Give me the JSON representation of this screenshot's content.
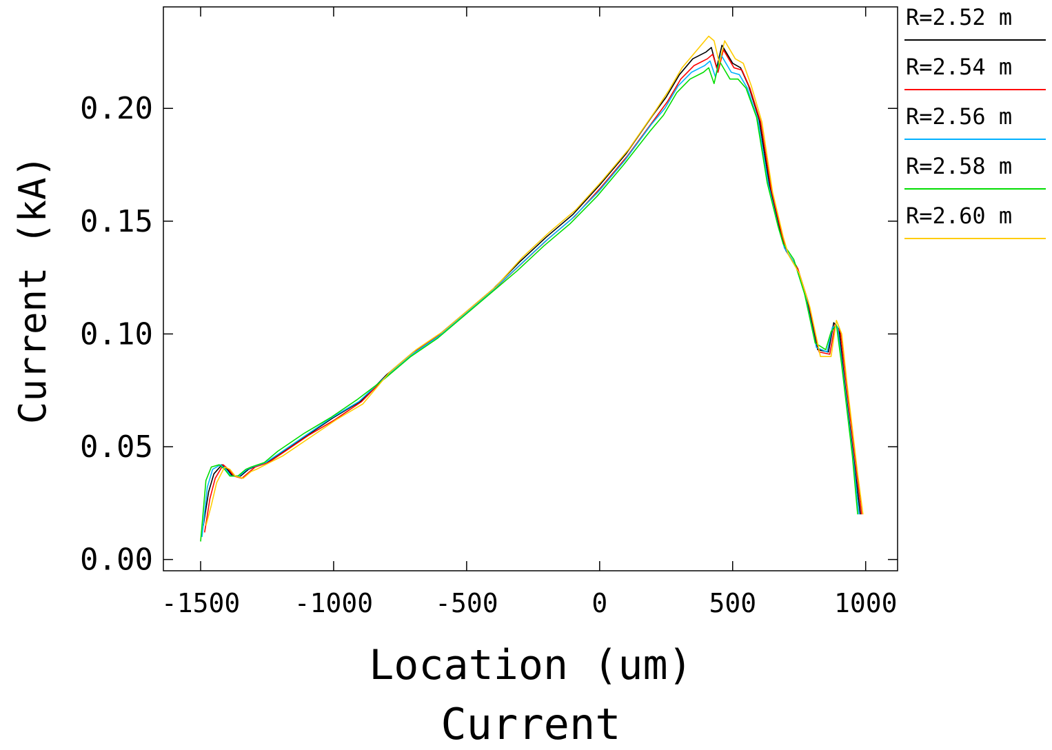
{
  "chart_data": {
    "type": "line",
    "title": "Current",
    "xlabel": "Location (um)",
    "ylabel": "Current (kA)",
    "xlim": [
      -1640,
      1120
    ],
    "ylim": [
      -0.005,
      0.245
    ],
    "xticks": [
      -1500,
      -1000,
      -500,
      0,
      500,
      1000
    ],
    "xtick_labels": [
      "-1500",
      "-1000",
      "-500",
      "0",
      "500",
      "1000"
    ],
    "yticks": [
      0.0,
      0.05,
      0.1,
      0.15,
      0.2
    ],
    "ytick_labels": [
      "0.00",
      "0.05",
      "0.10",
      "0.15",
      "0.20"
    ],
    "grid": false,
    "legend_position": "right-outside",
    "series": [
      {
        "name": "R=2.52 m",
        "color": "#000000",
        "x": [
          -1490,
          -1470,
          -1450,
          -1420,
          -1400,
          -1380,
          -1350,
          -1320,
          -1300,
          -1250,
          -1200,
          -1100,
          -1000,
          -900,
          -800,
          -700,
          -600,
          -500,
          -400,
          -300,
          -200,
          -100,
          0,
          100,
          200,
          250,
          300,
          350,
          400,
          420,
          440,
          460,
          480,
          500,
          530,
          560,
          600,
          640,
          680,
          700,
          740,
          780,
          820,
          860,
          880,
          900,
          920,
          940,
          960,
          980
        ],
        "y": [
          0.015,
          0.03,
          0.038,
          0.042,
          0.04,
          0.037,
          0.037,
          0.04,
          0.041,
          0.043,
          0.047,
          0.055,
          0.063,
          0.07,
          0.082,
          0.092,
          0.1,
          0.11,
          0.12,
          0.132,
          0.143,
          0.153,
          0.166,
          0.18,
          0.197,
          0.205,
          0.215,
          0.222,
          0.225,
          0.227,
          0.218,
          0.228,
          0.224,
          0.22,
          0.218,
          0.21,
          0.195,
          0.165,
          0.145,
          0.137,
          0.13,
          0.115,
          0.093,
          0.092,
          0.105,
          0.102,
          0.08,
          0.06,
          0.04,
          0.02
        ]
      },
      {
        "name": "R=2.54 m",
        "color": "#ff0000",
        "x": [
          -1485,
          -1465,
          -1445,
          -1415,
          -1395,
          -1375,
          -1345,
          -1315,
          -1295,
          -1245,
          -1195,
          -1095,
          -995,
          -895,
          -795,
          -695,
          -595,
          -495,
          -395,
          -295,
          -195,
          -95,
          5,
          105,
          205,
          255,
          305,
          355,
          405,
          425,
          445,
          465,
          485,
          505,
          535,
          565,
          605,
          645,
          685,
          705,
          745,
          785,
          825,
          865,
          885,
          905,
          925,
          945,
          965,
          985
        ],
        "y": [
          0.012,
          0.027,
          0.036,
          0.042,
          0.04,
          0.037,
          0.036,
          0.039,
          0.041,
          0.043,
          0.047,
          0.055,
          0.062,
          0.07,
          0.082,
          0.092,
          0.1,
          0.11,
          0.12,
          0.131,
          0.142,
          0.152,
          0.165,
          0.179,
          0.195,
          0.203,
          0.213,
          0.219,
          0.222,
          0.224,
          0.216,
          0.226,
          0.222,
          0.218,
          0.217,
          0.209,
          0.194,
          0.164,
          0.144,
          0.136,
          0.129,
          0.114,
          0.092,
          0.091,
          0.104,
          0.101,
          0.08,
          0.06,
          0.04,
          0.02
        ]
      },
      {
        "name": "R=2.56 m",
        "color": "#00b0ff",
        "x": [
          -1495,
          -1475,
          -1455,
          -1425,
          -1405,
          -1385,
          -1355,
          -1325,
          -1305,
          -1255,
          -1205,
          -1105,
          -1005,
          -905,
          -805,
          -705,
          -605,
          -505,
          -405,
          -305,
          -205,
          -105,
          -5,
          95,
          195,
          245,
          295,
          345,
          395,
          415,
          435,
          455,
          475,
          495,
          525,
          555,
          595,
          635,
          675,
          695,
          735,
          775,
          815,
          855,
          875,
          895,
          915,
          935,
          955,
          975
        ],
        "y": [
          0.01,
          0.032,
          0.04,
          0.042,
          0.04,
          0.037,
          0.037,
          0.04,
          0.041,
          0.043,
          0.047,
          0.055,
          0.063,
          0.07,
          0.081,
          0.091,
          0.099,
          0.109,
          0.119,
          0.13,
          0.141,
          0.151,
          0.163,
          0.177,
          0.193,
          0.2,
          0.21,
          0.216,
          0.219,
          0.221,
          0.214,
          0.224,
          0.22,
          0.216,
          0.215,
          0.209,
          0.195,
          0.166,
          0.146,
          0.138,
          0.131,
          0.116,
          0.094,
          0.092,
          0.103,
          0.103,
          0.083,
          0.063,
          0.043,
          0.02
        ]
      },
      {
        "name": "R=2.58 m",
        "color": "#00dd00",
        "x": [
          -1500,
          -1480,
          -1460,
          -1430,
          -1410,
          -1390,
          -1360,
          -1330,
          -1310,
          -1260,
          -1210,
          -1110,
          -1010,
          -910,
          -810,
          -710,
          -610,
          -510,
          -410,
          -310,
          -210,
          -110,
          -10,
          90,
          190,
          240,
          290,
          340,
          390,
          410,
          430,
          450,
          470,
          490,
          520,
          550,
          590,
          630,
          670,
          690,
          730,
          770,
          810,
          850,
          870,
          890,
          910,
          930,
          950,
          970
        ],
        "y": [
          0.008,
          0.035,
          0.041,
          0.042,
          0.04,
          0.037,
          0.037,
          0.04,
          0.041,
          0.043,
          0.048,
          0.056,
          0.063,
          0.071,
          0.08,
          0.09,
          0.098,
          0.108,
          0.118,
          0.128,
          0.139,
          0.149,
          0.161,
          0.175,
          0.19,
          0.197,
          0.207,
          0.213,
          0.216,
          0.218,
          0.211,
          0.221,
          0.217,
          0.213,
          0.213,
          0.209,
          0.196,
          0.167,
          0.148,
          0.14,
          0.133,
          0.118,
          0.096,
          0.093,
          0.101,
          0.104,
          0.086,
          0.066,
          0.046,
          0.02
        ]
      },
      {
        "name": "R=2.60 m",
        "color": "#ffcc00",
        "x": [
          -1480,
          -1460,
          -1440,
          -1410,
          -1390,
          -1370,
          -1340,
          -1310,
          -1290,
          -1240,
          -1190,
          -1090,
          -990,
          -890,
          -790,
          -690,
          -590,
          -490,
          -390,
          -290,
          -190,
          -90,
          10,
          110,
          210,
          260,
          310,
          360,
          410,
          430,
          450,
          470,
          490,
          510,
          540,
          570,
          610,
          650,
          690,
          710,
          750,
          790,
          830,
          870,
          890,
          910,
          930,
          950,
          970,
          990
        ],
        "y": [
          0.015,
          0.024,
          0.034,
          0.041,
          0.04,
          0.037,
          0.036,
          0.039,
          0.04,
          0.043,
          0.046,
          0.054,
          0.062,
          0.069,
          0.083,
          0.093,
          0.101,
          0.111,
          0.121,
          0.134,
          0.145,
          0.155,
          0.168,
          0.182,
          0.199,
          0.208,
          0.218,
          0.225,
          0.232,
          0.23,
          0.22,
          0.23,
          0.226,
          0.222,
          0.22,
          0.21,
          0.194,
          0.163,
          0.143,
          0.135,
          0.127,
          0.112,
          0.09,
          0.09,
          0.106,
          0.1,
          0.078,
          0.058,
          0.038,
          0.02
        ]
      }
    ]
  }
}
